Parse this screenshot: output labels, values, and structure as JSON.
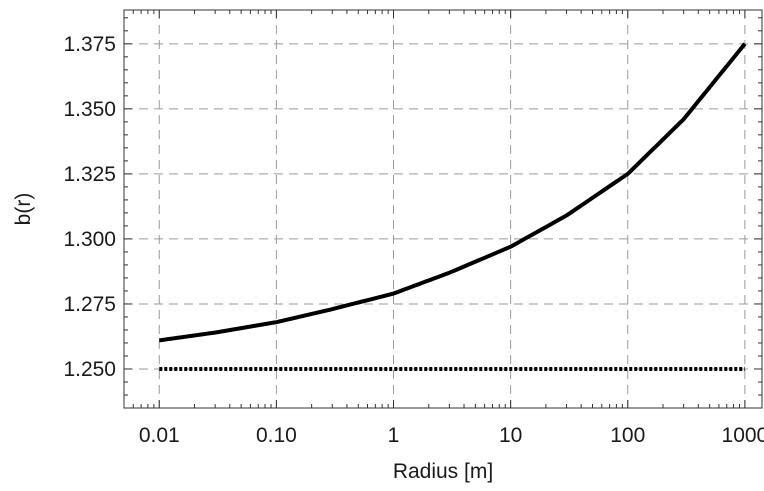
{
  "chart_data": {
    "type": "line",
    "title": "",
    "xlabel": "Radius [m]",
    "ylabel": "b(r)",
    "x_scale": "log",
    "xlim": [
      0.005,
      1400
    ],
    "ylim": [
      1.235,
      1.388
    ],
    "x_ticks": [
      0.01,
      0.1,
      1,
      10,
      100,
      1000
    ],
    "x_tick_labels": [
      "0.01",
      "0.10",
      "1",
      "10",
      "100",
      "1000"
    ],
    "y_ticks": [
      1.25,
      1.275,
      1.3,
      1.325,
      1.35,
      1.375
    ],
    "y_tick_labels": [
      "1.250",
      "1.275",
      "1.300",
      "1.325",
      "1.350",
      "1.375"
    ],
    "grid": true,
    "legend": "none",
    "series": [
      {
        "style": "solid",
        "color": "#000000",
        "x": [
          0.01,
          0.03,
          0.1,
          0.3,
          1,
          3,
          10,
          30,
          100,
          300,
          1000
        ],
        "y": [
          1.261,
          1.264,
          1.268,
          1.273,
          1.279,
          1.287,
          1.297,
          1.309,
          1.325,
          1.346,
          1.375
        ]
      },
      {
        "style": "dotted",
        "color": "#000000",
        "x": [
          0.01,
          1000
        ],
        "y": [
          1.25,
          1.25
        ]
      }
    ]
  }
}
